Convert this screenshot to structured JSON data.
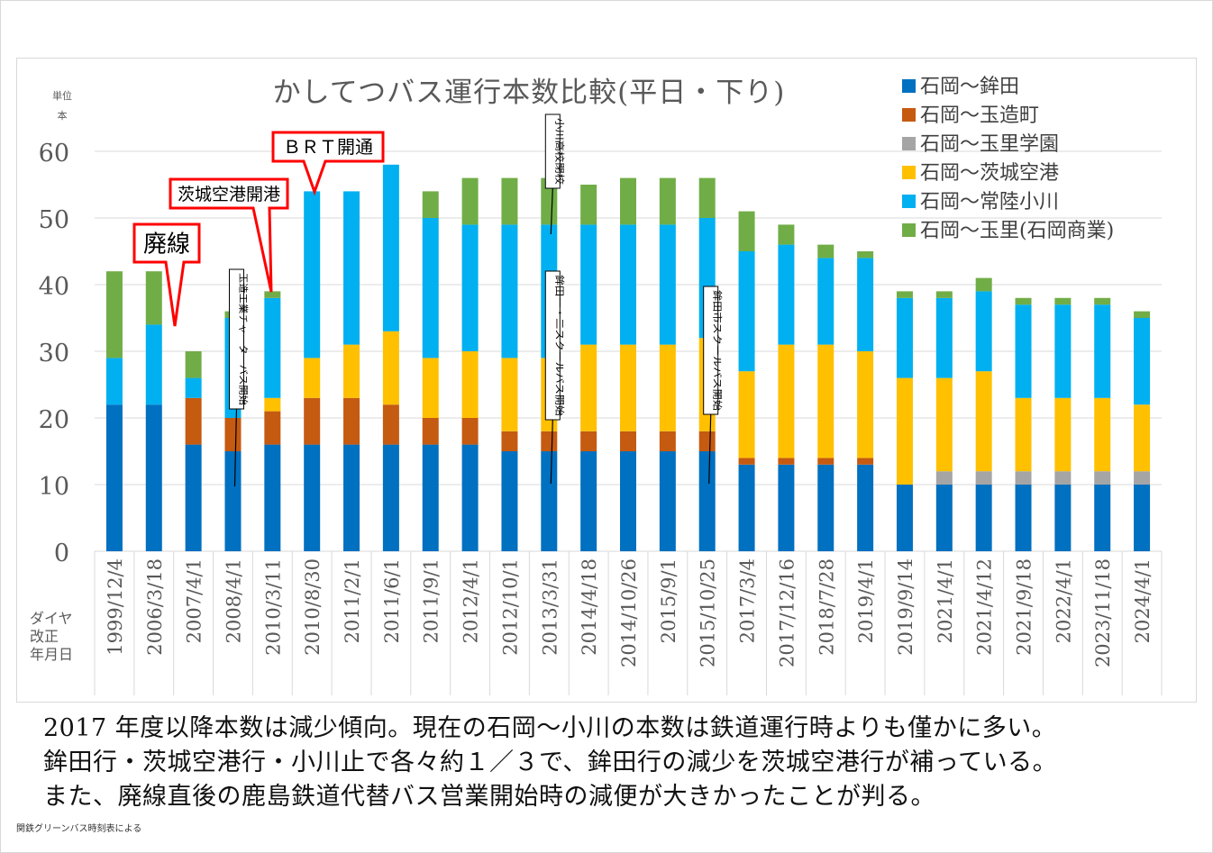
{
  "chart_data": {
    "type": "bar",
    "stacked": true,
    "title": "かしてつバス運行本数比較(平日・下り)",
    "unit_label": [
      "単位",
      "本"
    ],
    "xlabel": [
      "ダイヤ",
      "改正",
      "年月日"
    ],
    "ylim": [
      0,
      60
    ],
    "yticks": [
      0,
      10,
      20,
      30,
      40,
      50,
      60
    ],
    "grid": true,
    "legend_position": "top-right",
    "categories": [
      "1999/12/4",
      "2006/3/18",
      "2007/4/1",
      "2008/4/1",
      "2010/3/11",
      "2010/8/30",
      "2011/2/1",
      "2011/6/1",
      "2011/9/1",
      "2012/4/1",
      "2012/10/1",
      "2013/3/31",
      "2014/4/18",
      "2014/10/26",
      "2015/9/1",
      "2015/10/25",
      "2017/3/4",
      "2017/12/16",
      "2018/7/28",
      "2019/4/1",
      "2019/9/14",
      "2021/4/1",
      "2021/4/12",
      "2021/9/18",
      "2022/4/1",
      "2023/11/18",
      "2024/4/1"
    ],
    "series": [
      {
        "name": "石岡～鉾田",
        "color": "#0070c0",
        "values": [
          22,
          22,
          16,
          15,
          16,
          16,
          16,
          16,
          16,
          16,
          15,
          15,
          15,
          15,
          15,
          15,
          13,
          13,
          13,
          13,
          10,
          10,
          10,
          10,
          10,
          10,
          10
        ]
      },
      {
        "name": "石岡～玉造町",
        "color": "#c55a11",
        "values": [
          0,
          0,
          7,
          5,
          5,
          7,
          7,
          6,
          4,
          4,
          3,
          3,
          3,
          3,
          3,
          3,
          1,
          1,
          1,
          1,
          0,
          0,
          0,
          0,
          0,
          0,
          0
        ]
      },
      {
        "name": "石岡～玉里学園",
        "color": "#a5a5a5",
        "values": [
          0,
          0,
          0,
          0,
          0,
          0,
          0,
          0,
          0,
          0,
          0,
          0,
          0,
          0,
          0,
          0,
          0,
          0,
          0,
          0,
          0,
          2,
          2,
          2,
          2,
          2,
          2
        ]
      },
      {
        "name": "石岡～茨城空港",
        "color": "#ffc000",
        "values": [
          0,
          0,
          0,
          0,
          2,
          6,
          8,
          11,
          9,
          10,
          11,
          11,
          13,
          13,
          13,
          14,
          13,
          17,
          17,
          16,
          16,
          14,
          15,
          11,
          11,
          11,
          10
        ]
      },
      {
        "name": "石岡～常陸小川",
        "color": "#00b0f0",
        "values": [
          7,
          12,
          3,
          15,
          15,
          25,
          23,
          25,
          21,
          19,
          20,
          20,
          18,
          18,
          18,
          18,
          18,
          15,
          13,
          14,
          12,
          12,
          12,
          14,
          14,
          14,
          13
        ]
      },
      {
        "name": "石岡～玉里(石岡商業)",
        "color": "#70ad47",
        "values": [
          13,
          8,
          4,
          1,
          1,
          0,
          0,
          0,
          4,
          7,
          7,
          7,
          6,
          7,
          7,
          6,
          6,
          3,
          2,
          1,
          1,
          1,
          2,
          1,
          1,
          1,
          1
        ]
      }
    ],
    "callouts": [
      {
        "text": "廃線",
        "category_index": 1
      },
      {
        "text": "茨城空港開港",
        "category_index": 4
      },
      {
        "text": "ＢＲＴ開通",
        "category_index": 5
      }
    ],
    "annotations": [
      {
        "text": "玉造工業チャーターバス開始",
        "category_index": 3
      },
      {
        "text": "小川高校閉校",
        "category_index": 11
      },
      {
        "text": "鉾田一・二スクールバス開始",
        "category_index": 11
      },
      {
        "text": "鉾田市スクールバス開始",
        "category_index": 15
      }
    ]
  },
  "summary": {
    "line1": "2017 年度以降本数は減少傾向。現在の石岡～小川の本数は鉄道運行時よりも僅かに多い。",
    "line2": "鉾田行・茨城空港行・小川止で各々約１／３で、鉾田行の減少を茨城空港行が補っている。",
    "line3": "また、廃線直後の鹿島鉄道代替バス営業開始時の減便が大きかったことが判る。"
  },
  "source_note": "関鉄グリーンバス時刻表による"
}
